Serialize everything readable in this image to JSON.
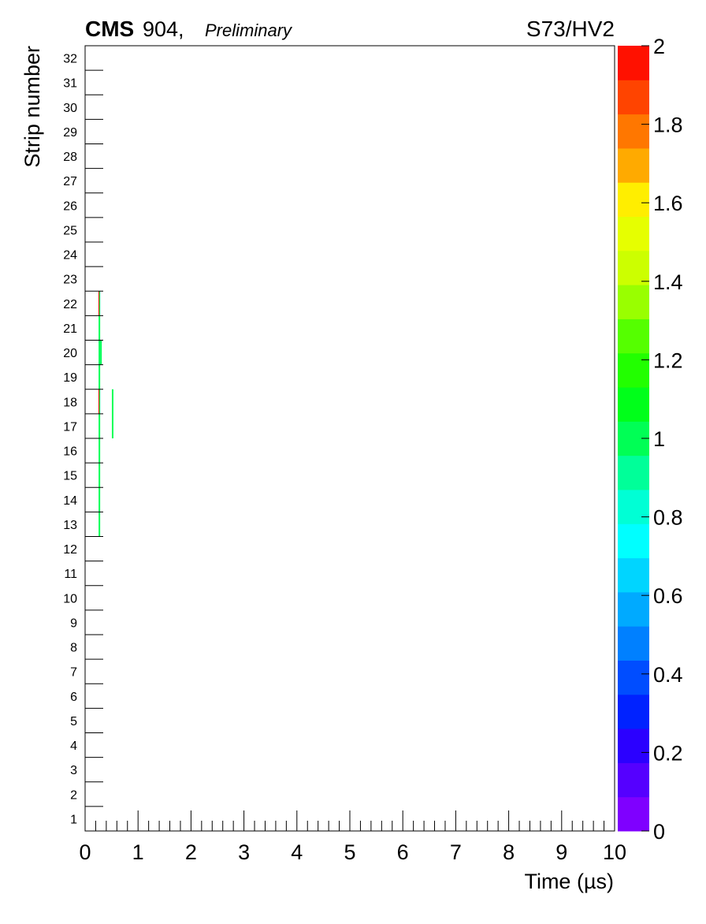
{
  "header": {
    "experiment": "CMS",
    "site": " 904,",
    "status": "Preliminary",
    "tag": "S73/HV2"
  },
  "chart_data": {
    "type": "heatmap",
    "xlabel": "Time (µs)",
    "ylabel": "Strip number",
    "xlim": [
      0,
      10
    ],
    "x_ticks": [
      "0",
      "1",
      "2",
      "3",
      "4",
      "5",
      "6",
      "7",
      "8",
      "9",
      "10"
    ],
    "x_minor_per_major": 5,
    "y_ticks": [
      "1",
      "2",
      "3",
      "4",
      "5",
      "6",
      "7",
      "8",
      "9",
      "10",
      "11",
      "12",
      "13",
      "14",
      "15",
      "16",
      "17",
      "18",
      "19",
      "20",
      "21",
      "22",
      "23",
      "24",
      "25",
      "26",
      "27",
      "28",
      "29",
      "30",
      "31",
      "32"
    ],
    "z_range": [
      0,
      2
    ],
    "z_ticks": [
      "0",
      "0.2",
      "0.4",
      "0.6",
      "0.8",
      "1",
      "1.2",
      "1.4",
      "1.6",
      "1.8",
      "2"
    ],
    "palette": [
      "#7f00ff",
      "#5500ff",
      "#2b00ff",
      "#0022ff",
      "#004dff",
      "#0080ff",
      "#00aaff",
      "#00d5ff",
      "#00ffff",
      "#00ffd5",
      "#00ff99",
      "#00ff55",
      "#00ff1a",
      "#22ff00",
      "#55ff00",
      "#99ff00",
      "#ccff00",
      "#e6ff00",
      "#ffee00",
      "#ffaa00",
      "#ff7700",
      "#ff4400",
      "#ff1100"
    ],
    "cells": [
      {
        "strip_min": 13,
        "strip_max": 22,
        "time": 0.27,
        "value": 1
      },
      {
        "strip_min": 22,
        "strip_max": 22,
        "time": 0.26,
        "value": 2
      },
      {
        "strip_min": 18,
        "strip_max": 18,
        "time": 0.26,
        "value": 2
      },
      {
        "strip_min": 17,
        "strip_max": 18,
        "time": 0.52,
        "value": 1
      },
      {
        "strip_min": 20,
        "strip_max": 20,
        "time": 0.3,
        "value": 1
      }
    ],
    "grid": false
  }
}
